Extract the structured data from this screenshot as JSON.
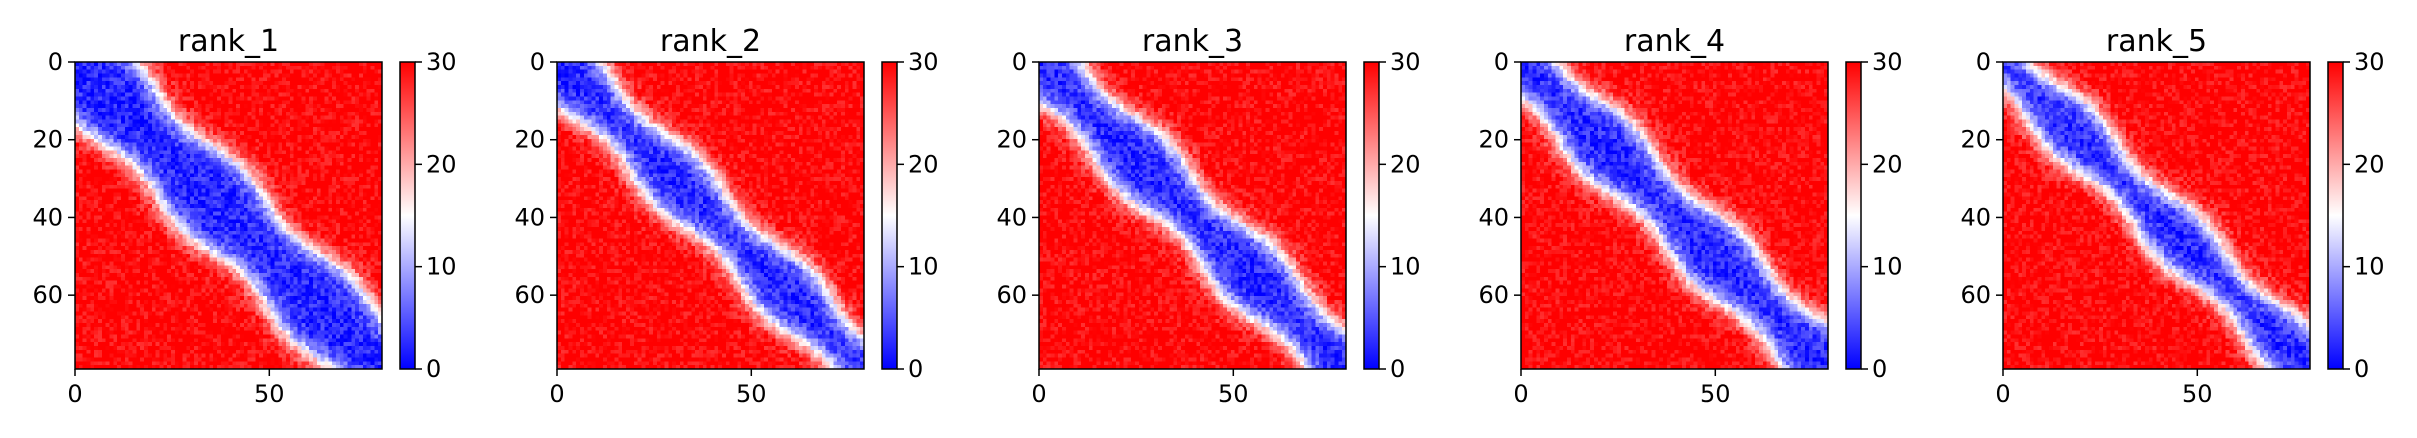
{
  "chart_data": [
    {
      "type": "heatmap",
      "title": "rank_1",
      "colormap": "bwr",
      "vmin": 0,
      "vmax": 30,
      "xlim": [
        0,
        79
      ],
      "ylim": [
        79,
        0
      ],
      "xticks": [
        0,
        50
      ],
      "yticks": [
        0,
        20,
        40,
        60
      ],
      "colorbar_ticks": [
        0,
        10,
        20,
        30
      ],
      "band_width": 14,
      "tick_labels": {
        "x": [
          "0",
          "50"
        ],
        "y": [
          "0",
          "20",
          "40",
          "60"
        ],
        "colorbar": [
          "0",
          "10",
          "20",
          "30"
        ]
      }
    },
    {
      "type": "heatmap",
      "title": "rank_2",
      "colormap": "bwr",
      "vmin": 0,
      "vmax": 30,
      "xlim": [
        0,
        79
      ],
      "ylim": [
        79,
        0
      ],
      "xticks": [
        0,
        50
      ],
      "yticks": [
        0,
        20,
        40,
        60
      ],
      "colorbar_ticks": [
        0,
        10,
        20,
        30
      ],
      "band_width": 10,
      "tick_labels": {
        "x": [
          "0",
          "50"
        ],
        "y": [
          "0",
          "20",
          "40",
          "60"
        ],
        "colorbar": [
          "0",
          "10",
          "20",
          "30"
        ]
      }
    },
    {
      "type": "heatmap",
      "title": "rank_3",
      "colormap": "bwr",
      "vmin": 0,
      "vmax": 30,
      "xlim": [
        0,
        79
      ],
      "ylim": [
        79,
        0
      ],
      "xticks": [
        0,
        50
      ],
      "yticks": [
        0,
        20,
        40,
        60
      ],
      "colorbar_ticks": [
        0,
        10,
        20,
        30
      ],
      "band_width": 11,
      "tick_labels": {
        "x": [
          "0",
          "50"
        ],
        "y": [
          "0",
          "20",
          "40",
          "60"
        ],
        "colorbar": [
          "0",
          "10",
          "20",
          "30"
        ]
      }
    },
    {
      "type": "heatmap",
      "title": "rank_4",
      "colormap": "bwr",
      "vmin": 0,
      "vmax": 30,
      "xlim": [
        0,
        79
      ],
      "ylim": [
        79,
        0
      ],
      "xticks": [
        0,
        50
      ],
      "yticks": [
        0,
        20,
        40,
        60
      ],
      "colorbar_ticks": [
        0,
        10,
        20,
        30
      ],
      "band_width": 11,
      "tick_labels": {
        "x": [
          "0",
          "50"
        ],
        "y": [
          "0",
          "20",
          "40",
          "60"
        ],
        "colorbar": [
          "0",
          "10",
          "20",
          "30"
        ]
      }
    },
    {
      "type": "heatmap",
      "title": "rank_5",
      "colormap": "bwr",
      "vmin": 0,
      "vmax": 30,
      "xlim": [
        0,
        79
      ],
      "ylim": [
        79,
        0
      ],
      "xticks": [
        0,
        50
      ],
      "yticks": [
        0,
        20,
        40,
        60
      ],
      "colorbar_ticks": [
        0,
        10,
        20,
        30
      ],
      "band_width": 9,
      "tick_labels": {
        "x": [
          "0",
          "50"
        ],
        "y": [
          "0",
          "20",
          "40",
          "60"
        ],
        "colorbar": [
          "0",
          "10",
          "20",
          "30"
        ]
      }
    }
  ]
}
